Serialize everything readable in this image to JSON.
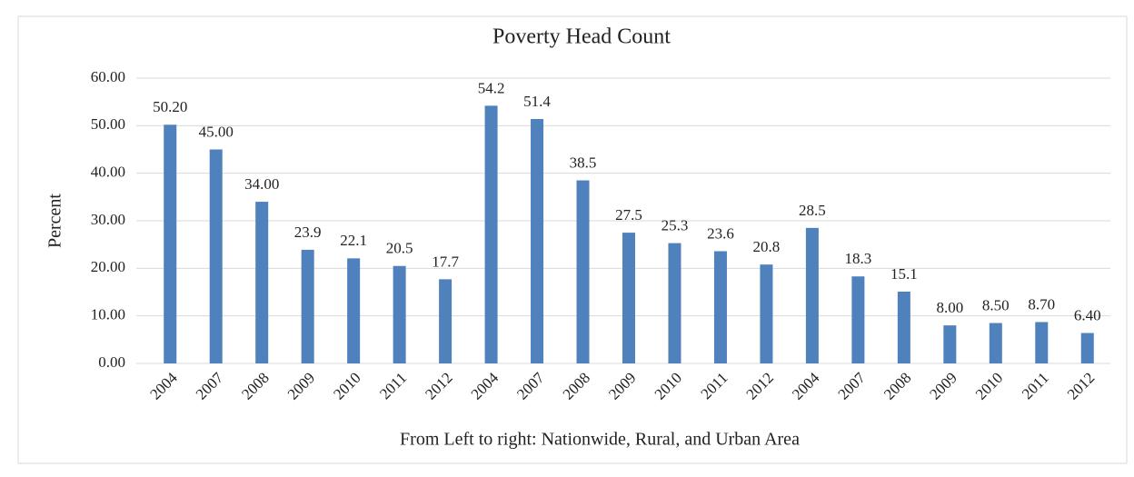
{
  "chart_data": {
    "type": "bar",
    "title": "Poverty Head Count",
    "x_label": "From Left to right: Nationwide, Rural, and Urban Area",
    "y_label": "Percent",
    "categories": [
      "2004",
      "2007",
      "2008",
      "2009",
      "2010",
      "2011",
      "2012",
      "2004",
      "2007",
      "2008",
      "2009",
      "2010",
      "2011",
      "2012",
      "2004",
      "2007",
      "2008",
      "2009",
      "2010",
      "2011",
      "2012"
    ],
    "values": [
      50.2,
      45,
      34,
      23.9,
      22.1,
      20.5,
      17.7,
      54.2,
      51.4,
      38.5,
      27.5,
      25.3,
      23.6,
      20.8,
      28.5,
      18.3,
      15.1,
      8,
      8.5,
      8.7,
      6.4
    ],
    "value_labels": [
      "50.20",
      "45.00",
      "34.00",
      "23.9",
      "22.1",
      "20.5",
      "17.7",
      "54.2",
      "51.4",
      "38.5",
      "27.5",
      "25.3",
      "23.6",
      "20.8",
      "28.5",
      "18.3",
      "15.1",
      "8.00",
      "8.50",
      "8.70",
      "6.40"
    ],
    "color": "#4f81bd",
    "ylim": [
      0,
      60
    ],
    "yticks": [
      {
        "value": 0,
        "label": "0.00"
      },
      {
        "value": 10,
        "label": "10.00"
      },
      {
        "value": 20,
        "label": "20.00"
      },
      {
        "value": 30,
        "label": "30.00"
      },
      {
        "value": 40,
        "label": "40.00"
      },
      {
        "value": 50,
        "label": "50.00"
      },
      {
        "value": 60,
        "label": "60.00"
      }
    ],
    "grid": true
  }
}
